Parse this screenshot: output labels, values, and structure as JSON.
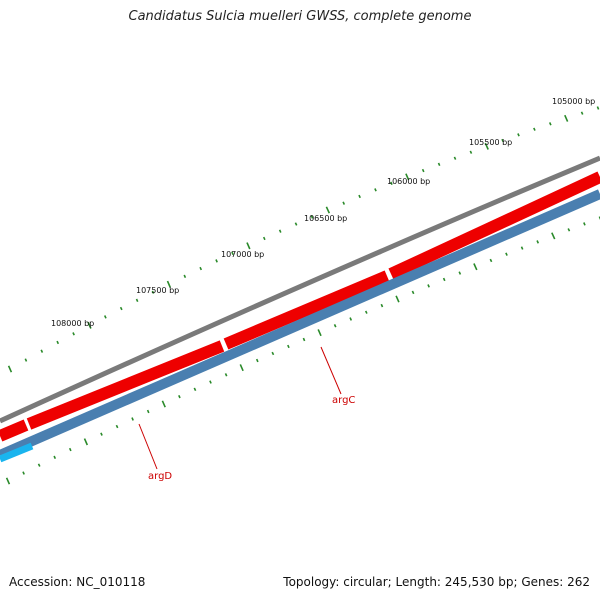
{
  "title": "Candidatus Sulcia muelleri GWSS, complete genome",
  "footer": {
    "accession": "Accession: NC_010118",
    "stats": "Topology: circular; Length: 245,530 bp; Genes: 262"
  },
  "genome": {
    "length_bp": 245530,
    "topology": "circular",
    "gene_count": 262
  },
  "ruler_labels": [
    "105000 bp",
    "105500 bp",
    "106000 bp",
    "106500 bp",
    "107000 bp",
    "107500 bp",
    "108000 bp"
  ],
  "genes": [
    {
      "name": "argC",
      "color": "#cc0000"
    },
    {
      "name": "argD",
      "color": "#cc0000"
    }
  ],
  "colors": {
    "backbone": "#7a7a7a",
    "forward_cds": "#ee0000",
    "reverse_cds": "#4a7fb0",
    "reverse_cds_highlight": "#1ab4ee",
    "ticks": "#2a8a2a",
    "label_line": "#cc0000"
  }
}
